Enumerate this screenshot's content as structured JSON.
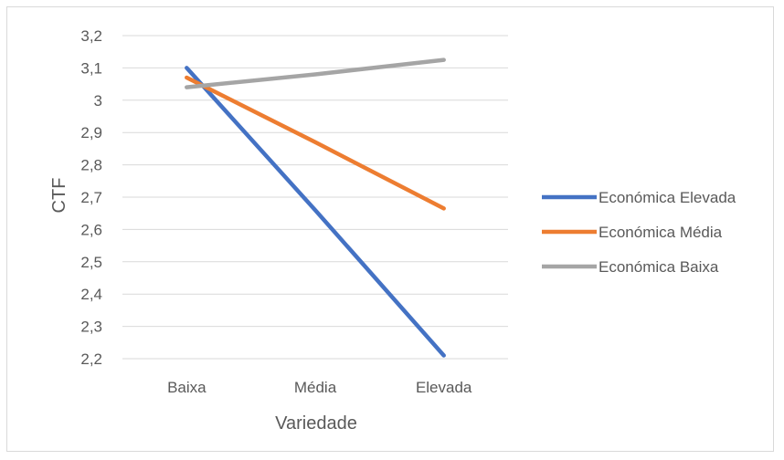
{
  "chart_data": {
    "type": "line",
    "categories": [
      "Baixa",
      "Média",
      "Elevada"
    ],
    "series": [
      {
        "name": "Económica Elevada",
        "values": [
          3.1,
          2.66,
          2.21
        ],
        "color": "#4472C4"
      },
      {
        "name": "Económica Média",
        "values": [
          3.07,
          2.87,
          2.665
        ],
        "color": "#ED7D31"
      },
      {
        "name": "Económica Baixa",
        "values": [
          3.04,
          3.08,
          3.125
        ],
        "color": "#A5A5A5"
      }
    ],
    "title": "",
    "xlabel": "Variedade",
    "ylabel": "CTF",
    "ylim": [
      2.2,
      3.2
    ],
    "yticks": [
      "2,2",
      "2,3",
      "2,4",
      "2,5",
      "2,6",
      "2,7",
      "2,8",
      "2,9",
      "3",
      "3,1",
      "3,2"
    ],
    "grid": "horizontal",
    "legend_position": "right"
  }
}
